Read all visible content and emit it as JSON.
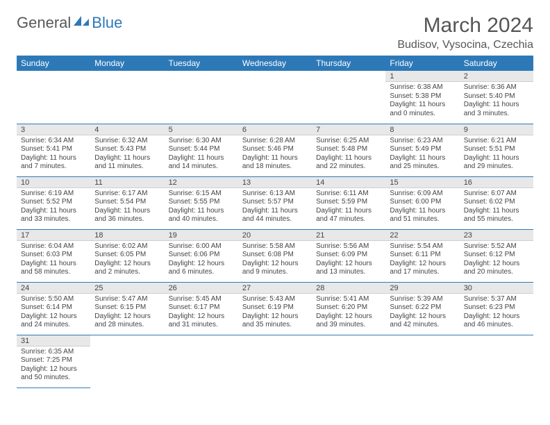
{
  "logo": {
    "part1": "General",
    "part2": "Blue"
  },
  "title": "March 2024",
  "location": "Budisov, Vysocina, Czechia",
  "colors": {
    "header_bg": "#2d79b8",
    "header_text": "#ffffff",
    "daynum_bg": "#e8e8e8",
    "border": "#2d79b8",
    "logo_gray": "#56585a"
  },
  "day_headers": [
    "Sunday",
    "Monday",
    "Tuesday",
    "Wednesday",
    "Thursday",
    "Friday",
    "Saturday"
  ],
  "weeks": [
    [
      null,
      null,
      null,
      null,
      null,
      {
        "n": "1",
        "sr": "Sunrise: 6:38 AM",
        "ss": "Sunset: 5:38 PM",
        "dl1": "Daylight: 11 hours",
        "dl2": "and 0 minutes."
      },
      {
        "n": "2",
        "sr": "Sunrise: 6:36 AM",
        "ss": "Sunset: 5:40 PM",
        "dl1": "Daylight: 11 hours",
        "dl2": "and 3 minutes."
      }
    ],
    [
      {
        "n": "3",
        "sr": "Sunrise: 6:34 AM",
        "ss": "Sunset: 5:41 PM",
        "dl1": "Daylight: 11 hours",
        "dl2": "and 7 minutes."
      },
      {
        "n": "4",
        "sr": "Sunrise: 6:32 AM",
        "ss": "Sunset: 5:43 PM",
        "dl1": "Daylight: 11 hours",
        "dl2": "and 11 minutes."
      },
      {
        "n": "5",
        "sr": "Sunrise: 6:30 AM",
        "ss": "Sunset: 5:44 PM",
        "dl1": "Daylight: 11 hours",
        "dl2": "and 14 minutes."
      },
      {
        "n": "6",
        "sr": "Sunrise: 6:28 AM",
        "ss": "Sunset: 5:46 PM",
        "dl1": "Daylight: 11 hours",
        "dl2": "and 18 minutes."
      },
      {
        "n": "7",
        "sr": "Sunrise: 6:25 AM",
        "ss": "Sunset: 5:48 PM",
        "dl1": "Daylight: 11 hours",
        "dl2": "and 22 minutes."
      },
      {
        "n": "8",
        "sr": "Sunrise: 6:23 AM",
        "ss": "Sunset: 5:49 PM",
        "dl1": "Daylight: 11 hours",
        "dl2": "and 25 minutes."
      },
      {
        "n": "9",
        "sr": "Sunrise: 6:21 AM",
        "ss": "Sunset: 5:51 PM",
        "dl1": "Daylight: 11 hours",
        "dl2": "and 29 minutes."
      }
    ],
    [
      {
        "n": "10",
        "sr": "Sunrise: 6:19 AM",
        "ss": "Sunset: 5:52 PM",
        "dl1": "Daylight: 11 hours",
        "dl2": "and 33 minutes."
      },
      {
        "n": "11",
        "sr": "Sunrise: 6:17 AM",
        "ss": "Sunset: 5:54 PM",
        "dl1": "Daylight: 11 hours",
        "dl2": "and 36 minutes."
      },
      {
        "n": "12",
        "sr": "Sunrise: 6:15 AM",
        "ss": "Sunset: 5:55 PM",
        "dl1": "Daylight: 11 hours",
        "dl2": "and 40 minutes."
      },
      {
        "n": "13",
        "sr": "Sunrise: 6:13 AM",
        "ss": "Sunset: 5:57 PM",
        "dl1": "Daylight: 11 hours",
        "dl2": "and 44 minutes."
      },
      {
        "n": "14",
        "sr": "Sunrise: 6:11 AM",
        "ss": "Sunset: 5:59 PM",
        "dl1": "Daylight: 11 hours",
        "dl2": "and 47 minutes."
      },
      {
        "n": "15",
        "sr": "Sunrise: 6:09 AM",
        "ss": "Sunset: 6:00 PM",
        "dl1": "Daylight: 11 hours",
        "dl2": "and 51 minutes."
      },
      {
        "n": "16",
        "sr": "Sunrise: 6:07 AM",
        "ss": "Sunset: 6:02 PM",
        "dl1": "Daylight: 11 hours",
        "dl2": "and 55 minutes."
      }
    ],
    [
      {
        "n": "17",
        "sr": "Sunrise: 6:04 AM",
        "ss": "Sunset: 6:03 PM",
        "dl1": "Daylight: 11 hours",
        "dl2": "and 58 minutes."
      },
      {
        "n": "18",
        "sr": "Sunrise: 6:02 AM",
        "ss": "Sunset: 6:05 PM",
        "dl1": "Daylight: 12 hours",
        "dl2": "and 2 minutes."
      },
      {
        "n": "19",
        "sr": "Sunrise: 6:00 AM",
        "ss": "Sunset: 6:06 PM",
        "dl1": "Daylight: 12 hours",
        "dl2": "and 6 minutes."
      },
      {
        "n": "20",
        "sr": "Sunrise: 5:58 AM",
        "ss": "Sunset: 6:08 PM",
        "dl1": "Daylight: 12 hours",
        "dl2": "and 9 minutes."
      },
      {
        "n": "21",
        "sr": "Sunrise: 5:56 AM",
        "ss": "Sunset: 6:09 PM",
        "dl1": "Daylight: 12 hours",
        "dl2": "and 13 minutes."
      },
      {
        "n": "22",
        "sr": "Sunrise: 5:54 AM",
        "ss": "Sunset: 6:11 PM",
        "dl1": "Daylight: 12 hours",
        "dl2": "and 17 minutes."
      },
      {
        "n": "23",
        "sr": "Sunrise: 5:52 AM",
        "ss": "Sunset: 6:12 PM",
        "dl1": "Daylight: 12 hours",
        "dl2": "and 20 minutes."
      }
    ],
    [
      {
        "n": "24",
        "sr": "Sunrise: 5:50 AM",
        "ss": "Sunset: 6:14 PM",
        "dl1": "Daylight: 12 hours",
        "dl2": "and 24 minutes."
      },
      {
        "n": "25",
        "sr": "Sunrise: 5:47 AM",
        "ss": "Sunset: 6:15 PM",
        "dl1": "Daylight: 12 hours",
        "dl2": "and 28 minutes."
      },
      {
        "n": "26",
        "sr": "Sunrise: 5:45 AM",
        "ss": "Sunset: 6:17 PM",
        "dl1": "Daylight: 12 hours",
        "dl2": "and 31 minutes."
      },
      {
        "n": "27",
        "sr": "Sunrise: 5:43 AM",
        "ss": "Sunset: 6:19 PM",
        "dl1": "Daylight: 12 hours",
        "dl2": "and 35 minutes."
      },
      {
        "n": "28",
        "sr": "Sunrise: 5:41 AM",
        "ss": "Sunset: 6:20 PM",
        "dl1": "Daylight: 12 hours",
        "dl2": "and 39 minutes."
      },
      {
        "n": "29",
        "sr": "Sunrise: 5:39 AM",
        "ss": "Sunset: 6:22 PM",
        "dl1": "Daylight: 12 hours",
        "dl2": "and 42 minutes."
      },
      {
        "n": "30",
        "sr": "Sunrise: 5:37 AM",
        "ss": "Sunset: 6:23 PM",
        "dl1": "Daylight: 12 hours",
        "dl2": "and 46 minutes."
      }
    ],
    [
      {
        "n": "31",
        "sr": "Sunrise: 6:35 AM",
        "ss": "Sunset: 7:25 PM",
        "dl1": "Daylight: 12 hours",
        "dl2": "and 50 minutes."
      },
      null,
      null,
      null,
      null,
      null,
      null
    ]
  ]
}
